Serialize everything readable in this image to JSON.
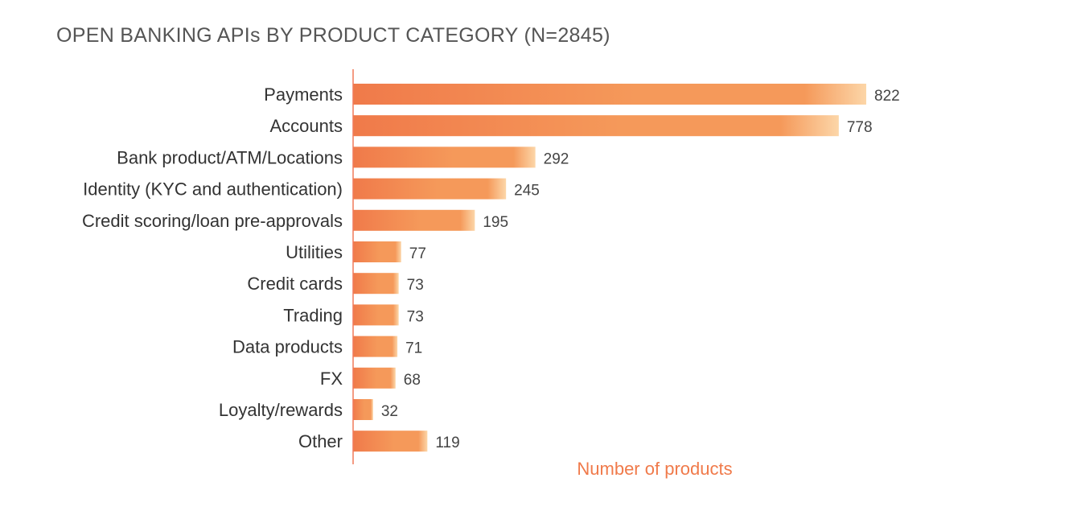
{
  "chart_data": {
    "type": "bar",
    "orientation": "horizontal",
    "title": "OPEN BANKING APIs BY PRODUCT CATEGORY (N=2845)",
    "xlabel": "Number of products",
    "ylabel": "",
    "categories": [
      "Payments",
      "Accounts",
      "Bank product/ATM/Locations",
      "Identity (KYC and authentication)",
      "Credit scoring/loan pre-approvals",
      "Utilities",
      "Credit cards",
      "Trading",
      "Data products",
      "FX",
      "Loyalty/rewards",
      "Other"
    ],
    "values": [
      822,
      778,
      292,
      245,
      195,
      77,
      73,
      73,
      71,
      68,
      32,
      119
    ],
    "xlim": [
      0,
      822
    ],
    "grid": false,
    "legend": "none",
    "colors": {
      "bar_start": "#f07a4a",
      "bar_mid": "#f5995a",
      "bar_end": "#fcd6a8",
      "axis": "#f07a5a",
      "xlabel": "#f07a4a"
    }
  }
}
